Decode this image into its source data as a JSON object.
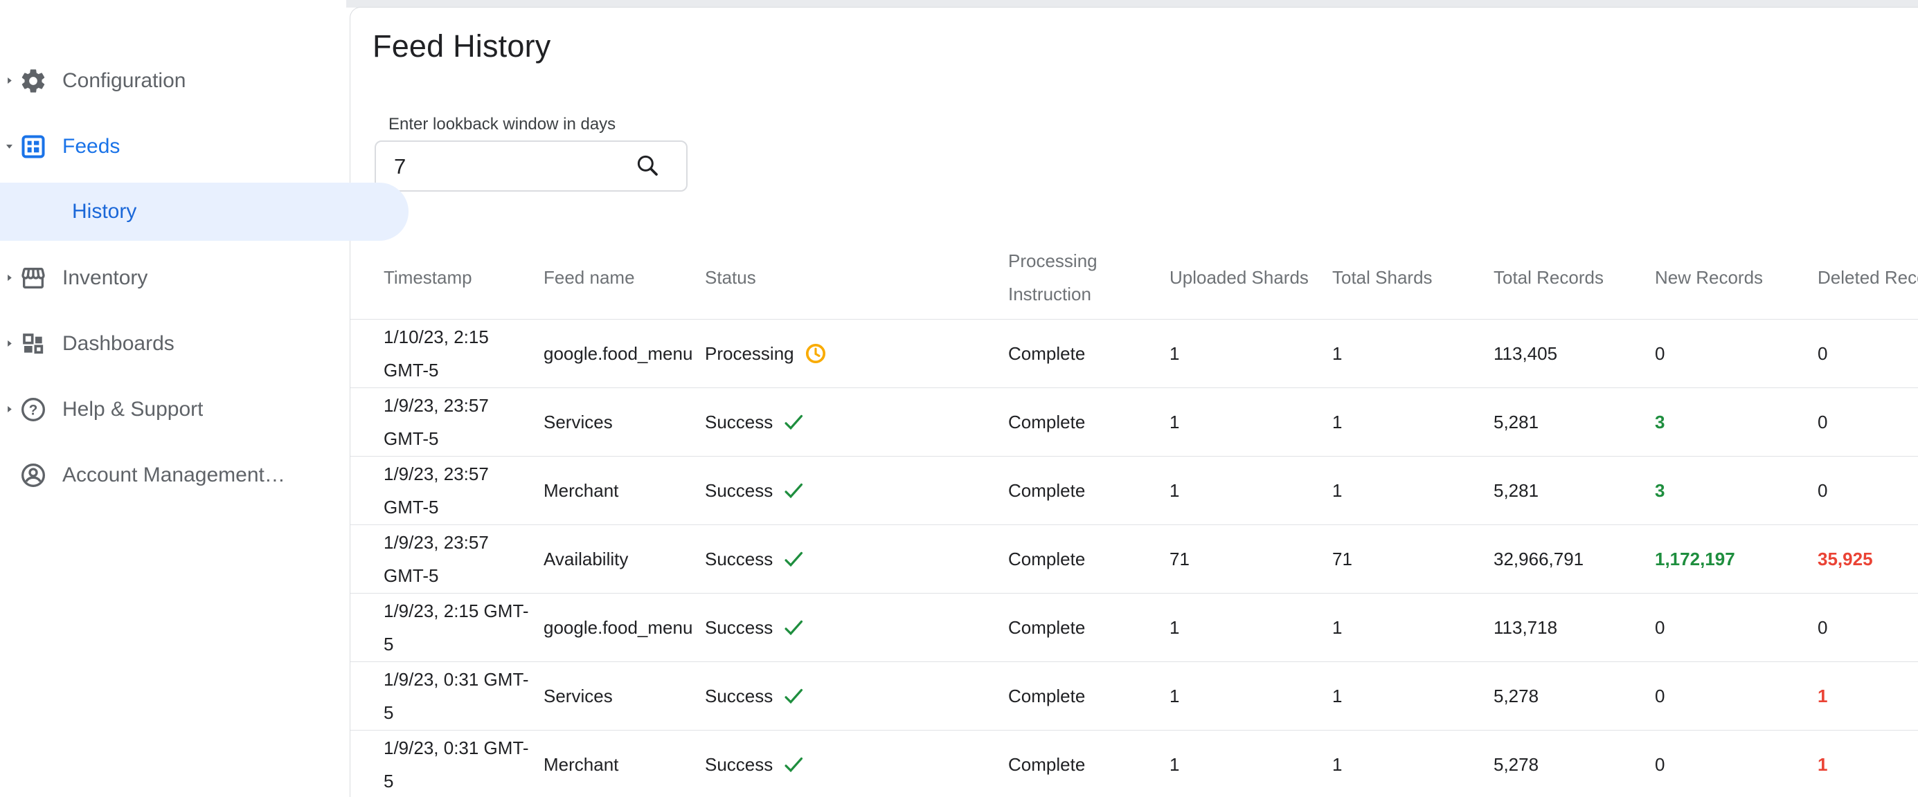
{
  "sidebar": {
    "items": [
      {
        "id": "configuration",
        "label": "Configuration",
        "icon": "gear-icon",
        "expand_arrow": "collapsed",
        "selected": false,
        "blue": false
      },
      {
        "id": "feeds",
        "label": "Feeds",
        "icon": "feeds-icon",
        "expand_arrow": "expanded",
        "selected": false,
        "blue": true
      },
      {
        "id": "history",
        "label": "History",
        "icon": null,
        "expand_arrow": null,
        "selected": true,
        "blue": true
      },
      {
        "id": "inventory",
        "label": "Inventory",
        "icon": "inventory-icon",
        "expand_arrow": "collapsed",
        "selected": false,
        "blue": false
      },
      {
        "id": "dashboards",
        "label": "Dashboards",
        "icon": "dashboards-icon",
        "expand_arrow": "collapsed",
        "selected": false,
        "blue": false
      },
      {
        "id": "help-support",
        "label": "Help & Support",
        "icon": "help-icon",
        "expand_arrow": "collapsed",
        "selected": false,
        "blue": false
      },
      {
        "id": "account-management",
        "label": "Account Management…",
        "icon": "account-icon",
        "expand_arrow": null,
        "selected": false,
        "blue": false
      }
    ]
  },
  "page": {
    "title": "Feed History"
  },
  "lookback": {
    "label": "Enter lookback window in days",
    "value": "7",
    "icon": "search-icon"
  },
  "table": {
    "columns": [
      "Timestamp",
      "Feed name",
      "Status",
      "Processing Instruction",
      "Uploaded Shards",
      "Total Shards",
      "Total Records",
      "New Records",
      "Deleted Records"
    ],
    "rows": [
      {
        "timestamp_line1": "1/10/23, 2:15",
        "timestamp_line2": "GMT-5",
        "feed_name": "google.food_menu",
        "status": "Processing",
        "status_icon": "clock-icon",
        "processing_instruction": "Complete",
        "uploaded_shards": "1",
        "total_shards": "1",
        "total_records": "113,405",
        "new_records": "0",
        "new_records_style": "default",
        "deleted_records": "0",
        "deleted_records_style": "default"
      },
      {
        "timestamp_line1": "1/9/23, 23:57",
        "timestamp_line2": "GMT-5",
        "feed_name": "Services",
        "status": "Success",
        "status_icon": "check-icon",
        "processing_instruction": "Complete",
        "uploaded_shards": "1",
        "total_shards": "1",
        "total_records": "5,281",
        "new_records": "3",
        "new_records_style": "green",
        "deleted_records": "0",
        "deleted_records_style": "default"
      },
      {
        "timestamp_line1": "1/9/23, 23:57",
        "timestamp_line2": "GMT-5",
        "feed_name": "Merchant",
        "status": "Success",
        "status_icon": "check-icon",
        "processing_instruction": "Complete",
        "uploaded_shards": "1",
        "total_shards": "1",
        "total_records": "5,281",
        "new_records": "3",
        "new_records_style": "green",
        "deleted_records": "0",
        "deleted_records_style": "default"
      },
      {
        "timestamp_line1": "1/9/23, 23:57",
        "timestamp_line2": "GMT-5",
        "feed_name": "Availability",
        "status": "Success",
        "status_icon": "check-icon",
        "processing_instruction": "Complete",
        "uploaded_shards": "71",
        "total_shards": "71",
        "total_records": "32,966,791",
        "new_records": "1,172,197",
        "new_records_style": "green",
        "deleted_records": "35,925",
        "deleted_records_style": "red"
      },
      {
        "timestamp_line1": "1/9/23, 2:15 GMT-",
        "timestamp_line2": "5",
        "feed_name": "google.food_menu",
        "status": "Success",
        "status_icon": "check-icon",
        "processing_instruction": "Complete",
        "uploaded_shards": "1",
        "total_shards": "1",
        "total_records": "113,718",
        "new_records": "0",
        "new_records_style": "default",
        "deleted_records": "0",
        "deleted_records_style": "default"
      },
      {
        "timestamp_line1": "1/9/23, 0:31 GMT-",
        "timestamp_line2": "5",
        "feed_name": "Services",
        "status": "Success",
        "status_icon": "check-icon",
        "processing_instruction": "Complete",
        "uploaded_shards": "1",
        "total_shards": "1",
        "total_records": "5,278",
        "new_records": "0",
        "new_records_style": "default",
        "deleted_records": "1",
        "deleted_records_style": "red"
      },
      {
        "timestamp_line1": "1/9/23, 0:31 GMT-",
        "timestamp_line2": "5",
        "feed_name": "Merchant",
        "status": "Success",
        "status_icon": "check-icon",
        "processing_instruction": "Complete",
        "uploaded_shards": "1",
        "total_shards": "1",
        "total_records": "5,278",
        "new_records": "0",
        "new_records_style": "default",
        "deleted_records": "1",
        "deleted_records_style": "red"
      }
    ]
  },
  "colors": {
    "accent_blue": "#1a73e8",
    "selected_item_bg": "#e8f0fe",
    "success_green": "#1e8e3e",
    "error_red": "#ea4335",
    "processing_amber": "#f9ab00",
    "sidebar_text_gray": "#5f6368",
    "header_text_gray": "#6e7276"
  }
}
